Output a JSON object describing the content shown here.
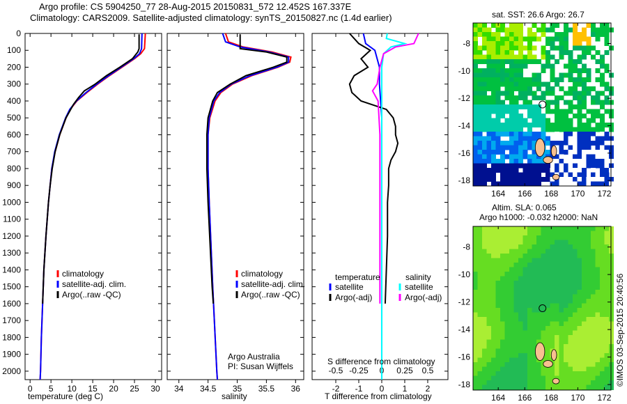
{
  "title_line1": "Argo profile: CS 5904250_77 28-Aug-2015 20150831_572 12.452S 167.337E",
  "title_line2": "Climatology: CARS2009. Satellite-adjusted climatology: synTS_20150827.nc (1.4d earlier)",
  "credit": "©IMOS 03-Sep-2015 20:40:56",
  "colors": {
    "climatology": "#ff0000",
    "satellite": "#0000ff",
    "argo": "#000000",
    "sal_sat": "#00ffff",
    "sal_argo": "#ff00ff"
  },
  "chart_data": [
    {
      "type": "line",
      "xlabel": "temperature (deg C)",
      "ylabel": "",
      "xlim": [
        -1.2,
        31.5
      ],
      "ylim": [
        2050,
        0
      ],
      "xticks": [
        "0",
        "5",
        "10",
        "15",
        "20",
        "25",
        "30"
      ],
      "xtick_values": [
        0,
        5,
        10,
        15,
        20,
        25,
        30
      ],
      "yticks": [
        "0",
        "100",
        "200",
        "300",
        "400",
        "500",
        "600",
        "700",
        "800",
        "900",
        "1000",
        "1100",
        "1200",
        "1300",
        "1400",
        "1500",
        "1600",
        "1700",
        "1800",
        "1900",
        "2000"
      ],
      "legend": [
        "climatology",
        "satellite-adj. clim.",
        "Argo(..raw -QC)"
      ],
      "series": [
        {
          "name": "climatology",
          "color": "#ff0000",
          "points": [
            [
              0,
              27.6
            ],
            [
              90,
              27.4
            ],
            [
              120,
              26.5
            ],
            [
              150,
              25
            ],
            [
              200,
              22
            ],
            [
              250,
              19
            ],
            [
              300,
              16.2
            ],
            [
              350,
              13.6
            ],
            [
              400,
              11.2
            ],
            [
              450,
              9.6
            ],
            [
              500,
              8.6
            ],
            [
              600,
              7.1
            ],
            [
              700,
              6
            ],
            [
              800,
              5.2
            ],
            [
              900,
              4.8
            ],
            [
              1000,
              4.4
            ],
            [
              1200,
              3.8
            ],
            [
              1400,
              3.3
            ],
            [
              1600,
              3
            ],
            [
              1800,
              2.7
            ],
            [
              2000,
              2.5
            ],
            [
              2050,
              2.4
            ]
          ]
        },
        {
          "name": "satellite-adj. clim.",
          "color": "#0000ff",
          "points": [
            [
              0,
              26.8
            ],
            [
              90,
              26.7
            ],
            [
              120,
              26.2
            ],
            [
              150,
              24.8
            ],
            [
              200,
              21.8
            ],
            [
              250,
              18.8
            ],
            [
              300,
              16
            ],
            [
              350,
              13.4
            ],
            [
              400,
              11.1
            ],
            [
              450,
              9.5
            ],
            [
              500,
              8.5
            ],
            [
              600,
              7
            ],
            [
              700,
              5.9
            ],
            [
              800,
              5.2
            ],
            [
              900,
              4.8
            ],
            [
              1000,
              4.4
            ],
            [
              1200,
              3.8
            ],
            [
              1400,
              3.3
            ],
            [
              1600,
              3
            ],
            [
              1800,
              2.7
            ],
            [
              2000,
              2.5
            ],
            [
              2050,
              2.4
            ]
          ]
        },
        {
          "name": "Argo(..raw -QC)",
          "color": "#000000",
          "points": [
            [
              5,
              26.1
            ],
            [
              90,
              26.1
            ],
            [
              110,
              25.8
            ],
            [
              150,
              24.5
            ],
            [
              200,
              21.5
            ],
            [
              250,
              18.3
            ],
            [
              300,
              15.6
            ],
            [
              340,
              13
            ],
            [
              380,
              11.6
            ],
            [
              420,
              10.4
            ],
            [
              460,
              9.5
            ],
            [
              500,
              8.6
            ],
            [
              600,
              7.1
            ],
            [
              700,
              6
            ],
            [
              800,
              5.3
            ],
            [
              900,
              4.8
            ],
            [
              1000,
              4.4
            ],
            [
              1200,
              3.8
            ],
            [
              1400,
              3.3
            ],
            [
              1600,
              3
            ]
          ]
        }
      ]
    },
    {
      "type": "line",
      "xlabel": "salinity",
      "xlim": [
        33.8,
        36.14
      ],
      "ylim": [
        2050,
        0
      ],
      "xticks": [
        "34",
        "34.5",
        "35",
        "35.5",
        "36"
      ],
      "xtick_values": [
        34,
        34.5,
        35,
        35.5,
        36
      ],
      "legend": [
        "climatology",
        "satellite-adj. clim.",
        "Argo(..raw -QC)"
      ],
      "annotation": [
        "Argo Australia",
        "PI: Susan Wijffels"
      ],
      "series": [
        {
          "name": "climatology",
          "color": "#ff0000",
          "points": [
            [
              0,
              34.8
            ],
            [
              50,
              34.85
            ],
            [
              80,
              35.1
            ],
            [
              110,
              35.6
            ],
            [
              140,
              35.92
            ],
            [
              170,
              35.9
            ],
            [
              200,
              35.7
            ],
            [
              250,
              35.25
            ],
            [
              300,
              34.92
            ],
            [
              350,
              34.72
            ],
            [
              400,
              34.62
            ],
            [
              500,
              34.53
            ],
            [
              600,
              34.5
            ],
            [
              800,
              34.5
            ],
            [
              1000,
              34.52
            ],
            [
              1500,
              34.58
            ],
            [
              2000,
              34.65
            ],
            [
              2050,
              34.66
            ]
          ]
        },
        {
          "name": "satellite-adj. clim.",
          "color": "#0000ff",
          "points": [
            [
              0,
              34.75
            ],
            [
              50,
              34.8
            ],
            [
              80,
              35.05
            ],
            [
              110,
              35.55
            ],
            [
              140,
              35.88
            ],
            [
              170,
              35.88
            ],
            [
              200,
              35.68
            ],
            [
              250,
              35.22
            ],
            [
              300,
              34.9
            ],
            [
              350,
              34.7
            ],
            [
              400,
              34.6
            ],
            [
              500,
              34.52
            ],
            [
              600,
              34.5
            ],
            [
              800,
              34.5
            ],
            [
              1000,
              34.52
            ],
            [
              1500,
              34.58
            ],
            [
              2000,
              34.65
            ],
            [
              2050,
              34.66
            ]
          ]
        },
        {
          "name": "Argo(..raw -QC)",
          "color": "#000000",
          "points": [
            [
              5,
              35.05
            ],
            [
              90,
              35.05
            ],
            [
              110,
              35.5
            ],
            [
              140,
              35.85
            ],
            [
              170,
              35.85
            ],
            [
              200,
              35.62
            ],
            [
              250,
              35.15
            ],
            [
              300,
              34.88
            ],
            [
              350,
              34.66
            ],
            [
              400,
              34.58
            ],
            [
              500,
              34.5
            ],
            [
              600,
              34.48
            ],
            [
              800,
              34.48
            ],
            [
              1000,
              34.5
            ],
            [
              1500,
              34.57
            ],
            [
              1600,
              34.59
            ]
          ]
        }
      ]
    },
    {
      "type": "line",
      "xlabel": "T difference from climatology",
      "x2label": "S difference from climatology",
      "xlim": [
        -3.03,
        2.88
      ],
      "ylim": [
        2050,
        0
      ],
      "xticks": [
        "-2",
        "-1",
        "0",
        "1",
        "2"
      ],
      "xtick_values": [
        -2,
        -1,
        0,
        1,
        2
      ],
      "x2ticks": [
        "-0.5",
        "-0.25",
        "0",
        "0.25",
        "0.5"
      ],
      "x2tick_values": [
        -0.5,
        -0.25,
        0,
        0.25,
        0.5
      ],
      "legend_temperature": {
        "title": "temperature",
        "items": [
          "satellite",
          "Argo(-adj)"
        ]
      },
      "legend_salinity": {
        "title": "salinity",
        "items": [
          "satellite",
          "Argo(-adj)"
        ]
      },
      "series": [
        {
          "name": "T satellite",
          "color": "#0000ff",
          "points": [
            [
              0,
              -0.8
            ],
            [
              60,
              -0.7
            ],
            [
              100,
              -0.3
            ],
            [
              150,
              -0.2
            ],
            [
              200,
              -0.1
            ],
            [
              300,
              -0.1
            ],
            [
              500,
              0
            ],
            [
              800,
              0
            ],
            [
              2050,
              0
            ]
          ]
        },
        {
          "name": "T Argo(-adj)",
          "color": "#000000",
          "points": [
            [
              0,
              -1.4
            ],
            [
              60,
              -1
            ],
            [
              100,
              -0.5
            ],
            [
              150,
              -0.9
            ],
            [
              200,
              -0.6
            ],
            [
              250,
              -1.2
            ],
            [
              300,
              -1.4
            ],
            [
              350,
              -1.3
            ],
            [
              400,
              -0.9
            ],
            [
              450,
              0.2
            ],
            [
              500,
              0.5
            ],
            [
              550,
              0.6
            ],
            [
              600,
              0.6
            ],
            [
              650,
              0.7
            ],
            [
              700,
              0.6
            ],
            [
              750,
              0.4
            ],
            [
              800,
              0.3
            ],
            [
              900,
              0.3
            ],
            [
              1000,
              0.25
            ],
            [
              1200,
              0.25
            ],
            [
              1400,
              0.2
            ],
            [
              1600,
              0.15
            ]
          ]
        },
        {
          "name": "S satellite",
          "color": "#00ffff",
          "points": [
            [
              0,
              0.06
            ],
            [
              30,
              0.05
            ],
            [
              60,
              0.25
            ],
            [
              80,
              0.1
            ],
            [
              120,
              0.02
            ],
            [
              200,
              0
            ],
            [
              2050,
              0
            ]
          ]
        },
        {
          "name": "S Argo(-adj)",
          "color": "#ff00ff",
          "points": [
            [
              0,
              0.4
            ],
            [
              60,
              0.35
            ],
            [
              80,
              0.15
            ],
            [
              120,
              0.02
            ],
            [
              200,
              -0.02
            ],
            [
              300,
              -0.05
            ],
            [
              340,
              -0.1
            ],
            [
              400,
              -0.04
            ],
            [
              600,
              -0.02
            ],
            [
              1600,
              -0.02
            ]
          ]
        }
      ]
    }
  ],
  "maps": [
    {
      "title": "sat. SST: 26.6 Argo: 26.7",
      "xticks": [
        "164",
        "166",
        "168",
        "170",
        "172"
      ],
      "yticks": [
        "-8",
        "-10",
        "-12",
        "-14",
        "-16",
        "-18"
      ]
    },
    {
      "title_line1": "Altim. SLA: 0.065",
      "title_line2": "Argo h1000: -0.032 h2000: NaN",
      "xticks": [
        "164",
        "166",
        "168",
        "170",
        "172"
      ],
      "yticks": [
        "-8",
        "-10",
        "-12",
        "-14",
        "-16",
        "-18"
      ]
    }
  ],
  "argo_position": {
    "lon": 167.337,
    "lat": -12.452
  }
}
